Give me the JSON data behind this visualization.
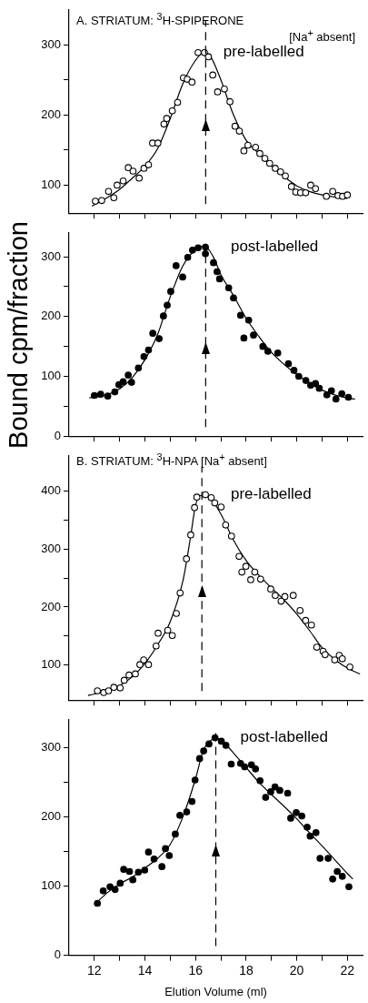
{
  "chart_data": [
    {
      "type": "scatter",
      "title": "A. STRIATUM: $^{3}$H-SPIPERONE",
      "annotations": [
        "[Na$^{+}$ absent]"
      ],
      "grid": false,
      "tick_labels": "y",
      "xlim": [
        11,
        22.6
      ],
      "xticks": [
        {
          "value": 12,
          "label": null
        },
        {
          "value": 13,
          "label": null
        },
        {
          "value": 14,
          "label": null
        },
        {
          "value": 15,
          "label": null
        },
        {
          "value": 16,
          "label": null
        },
        {
          "value": 17,
          "label": null
        },
        {
          "value": 18,
          "label": null
        },
        {
          "value": 19,
          "label": null
        },
        {
          "value": 20,
          "label": null
        },
        {
          "value": 21,
          "label": null
        },
        {
          "value": 22,
          "label": null
        }
      ],
      "ylim": [
        60,
        350
      ],
      "yticks": [
        100,
        {
          "value": 150,
          "label": null
        },
        200,
        {
          "value": 250,
          "label": null
        },
        300
      ],
      "ref_lines": [
        {
          "axis": "x",
          "value": 16.4,
          "line_style": "dashed",
          "color": "#000000"
        }
      ],
      "series": [
        {
          "name": "pre-labelled",
          "type": "scatter",
          "marker": "circle",
          "color": "#000000",
          "x": [
            12.04,
            12.29,
            12.56,
            12.77,
            12.9,
            13.14,
            13.34,
            13.53,
            13.77,
            13.96,
            14.14,
            14.3,
            14.51,
            14.75,
            14.86,
            15.08,
            15.29,
            15.52,
            15.67,
            15.86,
            16.1,
            16.35,
            16.51,
            16.68,
            16.87,
            17.14,
            17.36,
            17.56,
            17.73,
            17.91,
            18.07,
            18.37,
            18.54,
            18.74,
            18.93,
            19.15,
            19.36,
            19.55,
            19.79,
            19.96,
            20.15,
            20.35,
            20.55,
            20.74,
            21.17,
            21.42,
            21.63,
            21.81,
            22.0
          ],
          "values": [
            77,
            78,
            91,
            82,
            100,
            106,
            125,
            120,
            110,
            124,
            129,
            160,
            160,
            187,
            195,
            206,
            218,
            253,
            251,
            247,
            289,
            289,
            283,
            257,
            233,
            237,
            219,
            184,
            177,
            149,
            157,
            154,
            145,
            138,
            131,
            124,
            119,
            113,
            98,
            90,
            89,
            89,
            100,
            95,
            84,
            91,
            85,
            84,
            86
          ]
        },
        {
          "type": "line",
          "color": "#000000",
          "x": [
            11.9,
            12.5,
            13,
            13.5,
            14,
            14.5,
            15,
            15.5,
            16,
            16.35,
            16.6,
            17,
            17.5,
            18,
            18.5,
            19,
            19.5,
            20,
            20.5,
            21,
            21.5,
            22
          ],
          "values": [
            70,
            82,
            94,
            110,
            127,
            152,
            195,
            245,
            278,
            290,
            283,
            250,
            200,
            164,
            145,
            127,
            112,
            99,
            91,
            86,
            83,
            81
          ]
        }
      ]
    },
    {
      "type": "scatter",
      "ylabel": "Bound cpm/fraction",
      "grid": false,
      "tick_labels": "y",
      "xlim": [
        11,
        22.6
      ],
      "xticks": [
        {
          "value": 12,
          "label": null
        },
        {
          "value": 13,
          "label": null
        },
        {
          "value": 14,
          "label": null
        },
        {
          "value": 15,
          "label": null
        },
        {
          "value": 16,
          "label": null
        },
        {
          "value": 17,
          "label": null
        },
        {
          "value": 18,
          "label": null
        },
        {
          "value": 19,
          "label": null
        },
        {
          "value": 20,
          "label": null
        },
        {
          "value": 21,
          "label": null
        },
        {
          "value": 22,
          "label": null
        }
      ],
      "ylim": [
        0,
        340
      ],
      "yticks": [
        0,
        {
          "value": 50,
          "label": null
        },
        100,
        {
          "value": 150,
          "label": null
        },
        200,
        {
          "value": 250,
          "label": null
        },
        300
      ],
      "ref_lines": [
        {
          "axis": "x",
          "value": 16.4,
          "line_style": "dashed",
          "color": "#000000"
        }
      ],
      "series": [
        {
          "name": "post-labelled",
          "type": "scatter",
          "marker": "circle",
          "color": "#000000",
          "x": [
            12.0,
            12.25,
            12.53,
            12.81,
            12.97,
            13.14,
            13.34,
            13.47,
            13.74,
            13.96,
            14.14,
            14.31,
            14.56,
            14.73,
            14.88,
            15.02,
            15.23,
            15.49,
            15.69,
            15.88,
            16.1,
            16.39,
            16.39,
            16.71,
            16.85,
            16.95,
            17.31,
            17.5,
            17.78,
            18.1,
            17.91,
            18.29,
            18.66,
            18.86,
            19.25,
            19.67,
            19.89,
            20.08,
            20.36,
            20.55,
            20.74,
            20.89,
            21.19,
            21.37,
            21.55,
            21.78,
            22.04
          ],
          "values": [
            68,
            70,
            67,
            74,
            86,
            91,
            102,
            90,
            114,
            133,
            144,
            172,
            163,
            201,
            219,
            242,
            285,
            266,
            299,
            311,
            315,
            316,
            305,
            290,
            275,
            263,
            248,
            231,
            202,
            194,
            164,
            169,
            150,
            142,
            139,
            121,
            110,
            100,
            93,
            85,
            88,
            80,
            69,
            76,
            62,
            71,
            65
          ]
        },
        {
          "type": "line",
          "color": "#000000",
          "x": [
            11.8,
            12.5,
            13,
            13.5,
            14,
            14.5,
            15,
            15.5,
            16,
            16.35,
            16.7,
            17,
            17.5,
            18,
            18.5,
            19,
            19.5,
            20,
            20.5,
            21,
            21.5,
            22,
            22.3
          ],
          "values": [
            64,
            69,
            79,
            98,
            128,
            170,
            233,
            285,
            312,
            318,
            300,
            270,
            235,
            197,
            167,
            140,
            120,
            103,
            89,
            77,
            69,
            64,
            62
          ]
        }
      ]
    },
    {
      "type": "scatter",
      "title": "B. STRIATUM: $^{3}$H-NPA [Na$^{+}$ absent]",
      "grid": false,
      "tick_labels": "y",
      "xlim": [
        11,
        22.6
      ],
      "xticks": [
        {
          "value": 12,
          "label": null
        },
        {
          "value": 13,
          "label": null
        },
        {
          "value": 14,
          "label": null
        },
        {
          "value": 15,
          "label": null
        },
        {
          "value": 16,
          "label": null
        },
        {
          "value": 17,
          "label": null
        },
        {
          "value": 18,
          "label": null
        },
        {
          "value": 19,
          "label": null
        },
        {
          "value": 20,
          "label": null
        },
        {
          "value": 21,
          "label": null
        },
        {
          "value": 22,
          "label": null
        }
      ],
      "ylim": [
        40,
        460
      ],
      "yticks": [
        100,
        {
          "value": 150,
          "label": null
        },
        200,
        {
          "value": 250,
          "label": null
        },
        300,
        {
          "value": 350,
          "label": null
        },
        400
      ],
      "ref_lines": [
        {
          "axis": "x",
          "value": 16.25,
          "line_style": "dashed",
          "color": "#000000"
        }
      ],
      "series": [
        {
          "name": "pre-labelled",
          "type": "scatter",
          "marker": "circle",
          "color": "#000000",
          "x": [
            12.12,
            12.37,
            12.56,
            12.77,
            13.02,
            13.18,
            13.37,
            13.62,
            13.8,
            13.95,
            14.14,
            14.44,
            14.52,
            14.9,
            15.08,
            15.24,
            15.39,
            15.64,
            15.81,
            15.96,
            16.05,
            16.39,
            16.62,
            16.76,
            17.01,
            17.19,
            17.42,
            17.72,
            17.99,
            17.83,
            18.34,
            18.18,
            18.57,
            18.97,
            19.15,
            19.53,
            19.38,
            19.86,
            20.13,
            20.35,
            20.58,
            20.79,
            21.04,
            21.12,
            21.5,
            21.68,
            21.8,
            22.1
          ],
          "values": [
            56,
            53,
            56,
            62,
            61,
            74,
            83,
            85,
            101,
            109,
            101,
            133,
            155,
            160,
            151,
            189,
            224,
            283,
            324,
            371,
            389,
            393,
            388,
            379,
            372,
            341,
            322,
            287,
            270,
            260,
            260,
            247,
            248,
            231,
            220,
            218,
            210,
            220,
            194,
            177,
            169,
            131,
            124,
            118,
            109,
            117,
            111,
            97
          ]
        },
        {
          "type": "line",
          "color": "#000000",
          "x": [
            11.75,
            12.5,
            13,
            13.5,
            14,
            14.5,
            15,
            15.5,
            15.8,
            16,
            16.2,
            16.5,
            17,
            17.5,
            18,
            18.5,
            19,
            19.5,
            20,
            20.5,
            21,
            21.5,
            22,
            22.5
          ],
          "values": [
            48,
            56,
            65,
            80,
            103,
            135,
            175,
            245,
            320,
            375,
            392,
            390,
            360,
            315,
            280,
            255,
            233,
            212,
            188,
            160,
            130,
            110,
            95,
            85
          ]
        }
      ]
    },
    {
      "type": "scatter",
      "xlabel": "Elution Volume (ml)",
      "grid": false,
      "xlim": [
        11,
        22.6
      ],
      "xticks": [
        12,
        {
          "value": 13,
          "label": null
        },
        14,
        {
          "value": 15,
          "label": null
        },
        16,
        {
          "value": 17,
          "label": null
        },
        18,
        {
          "value": 19,
          "label": null
        },
        20,
        {
          "value": 21,
          "label": null
        },
        22
      ],
      "ylim": [
        0,
        340
      ],
      "yticks": [
        0,
        100,
        {
          "value": 150,
          "label": null
        },
        200,
        {
          "value": 250,
          "label": null
        },
        300
      ],
      "ref_lines": [
        {
          "axis": "x",
          "value": 16.8,
          "line_style": "dashed",
          "color": "#000000"
        }
      ],
      "series": [
        {
          "name": "post-labelled",
          "type": "scatter",
          "marker": "circle",
          "color": "#000000",
          "x": [
            12.12,
            12.35,
            12.62,
            12.82,
            13.02,
            13.16,
            13.39,
            13.52,
            13.74,
            13.99,
            14.14,
            14.36,
            14.67,
            14.81,
            14.96,
            15.2,
            15.38,
            15.65,
            15.86,
            15.98,
            16.16,
            16.32,
            16.53,
            16.77,
            17.02,
            17.2,
            17.41,
            17.78,
            17.94,
            18.21,
            18.37,
            18.55,
            18.77,
            18.97,
            19.14,
            19.33,
            19.64,
            19.76,
            19.98,
            20.2,
            20.41,
            20.53,
            20.76,
            20.92,
            21.24,
            21.42,
            21.6,
            21.8,
            22.06
          ],
          "values": [
            75,
            93,
            99,
            95,
            104,
            124,
            121,
            109,
            120,
            123,
            149,
            139,
            128,
            154,
            144,
            175,
            202,
            207,
            222,
            253,
            284,
            295,
            305,
            314,
            309,
            303,
            276,
            277,
            272,
            275,
            269,
            252,
            228,
            236,
            243,
            238,
            234,
            198,
            206,
            201,
            185,
            172,
            177,
            140,
            140,
            110,
            121,
            114,
            99
          ]
        },
        {
          "type": "line",
          "color": "#000000",
          "x": [
            12,
            12.5,
            13,
            13.5,
            14,
            14.5,
            15,
            15.5,
            16,
            16.3,
            16.6,
            16.8,
            17.2,
            17.5,
            18,
            18.5,
            19,
            19.5,
            20,
            20.5,
            21,
            21.5,
            22,
            22.22
          ],
          "values": [
            73,
            90,
            103,
            113,
            126,
            140,
            160,
            200,
            255,
            295,
            310,
            314,
            304,
            292,
            271,
            250,
            232,
            215,
            197,
            177,
            158,
            138,
            118,
            110
          ]
        }
      ]
    }
  ]
}
